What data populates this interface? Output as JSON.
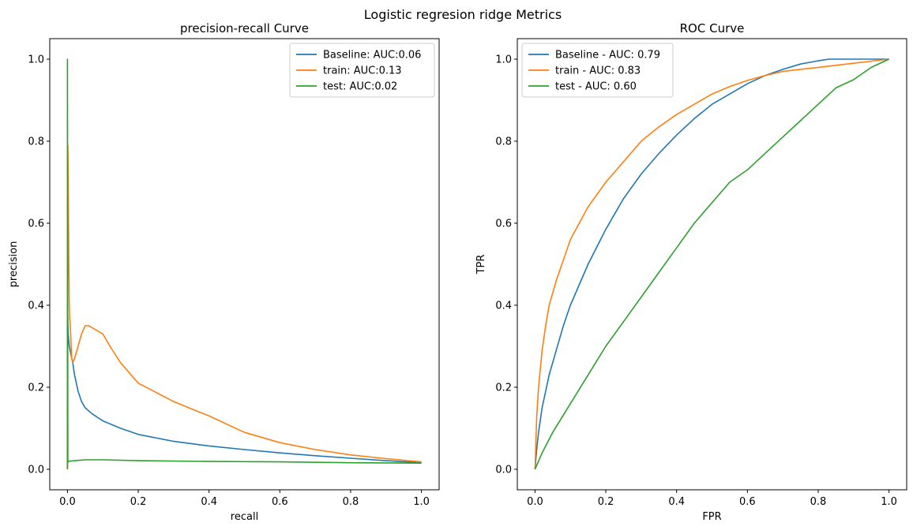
{
  "figure": {
    "title": "Logistic regresion ridge Metrics"
  },
  "colors": {
    "blue": "#1f77b4",
    "orange": "#ff7f0e",
    "green": "#2ca02c"
  },
  "chart_data": [
    {
      "type": "line",
      "title": "precision-recall Curve",
      "xlabel": "recall",
      "ylabel": "precision",
      "xlim": [
        -0.05,
        1.05
      ],
      "ylim": [
        -0.05,
        1.05
      ],
      "xticks": [
        0.0,
        0.2,
        0.4,
        0.6,
        0.8,
        1.0
      ],
      "yticks": [
        0.0,
        0.2,
        0.4,
        0.6,
        0.8,
        1.0
      ],
      "tick_labels": [
        "0.0",
        "0.2",
        "0.4",
        "0.6",
        "0.8",
        "1.0"
      ],
      "grid": false,
      "legend": "top-right",
      "series": [
        {
          "name": "Baseline: AUC:0.06",
          "color": "#1f77b4",
          "x": [
            0.0,
            0.0,
            0.002,
            0.005,
            0.01,
            0.015,
            0.02,
            0.03,
            0.04,
            0.05,
            0.07,
            0.1,
            0.15,
            0.2,
            0.3,
            0.4,
            0.5,
            0.6,
            0.7,
            0.8,
            0.9,
            1.0
          ],
          "y": [
            0.0,
            0.4,
            0.33,
            0.3,
            0.28,
            0.26,
            0.23,
            0.19,
            0.165,
            0.15,
            0.135,
            0.118,
            0.1,
            0.085,
            0.068,
            0.057,
            0.048,
            0.04,
            0.033,
            0.027,
            0.021,
            0.016
          ]
        },
        {
          "name": "train: AUC:0.13",
          "color": "#ff7f0e",
          "x": [
            0.0,
            0.001,
            0.002,
            0.003,
            0.004,
            0.005,
            0.006,
            0.008,
            0.01,
            0.012,
            0.015,
            0.02,
            0.03,
            0.04,
            0.05,
            0.06,
            0.07,
            0.08,
            0.1,
            0.12,
            0.15,
            0.2,
            0.3,
            0.4,
            0.5,
            0.6,
            0.7,
            0.8,
            0.9,
            1.0
          ],
          "y": [
            0.0,
            0.79,
            0.74,
            0.6,
            0.5,
            0.4,
            0.37,
            0.35,
            0.31,
            0.27,
            0.26,
            0.27,
            0.3,
            0.33,
            0.35,
            0.35,
            0.345,
            0.34,
            0.33,
            0.3,
            0.26,
            0.21,
            0.165,
            0.13,
            0.09,
            0.065,
            0.048,
            0.035,
            0.026,
            0.018
          ]
        },
        {
          "name": "test: AUC:0.02",
          "color": "#2ca02c",
          "x": [
            0.0,
            0.0,
            0.001,
            0.002,
            0.005,
            0.01,
            0.02,
            0.05,
            0.1,
            0.2,
            0.4,
            0.6,
            0.8,
            1.0
          ],
          "y": [
            0.0,
            1.0,
            0.02,
            0.018,
            0.02,
            0.02,
            0.021,
            0.023,
            0.023,
            0.021,
            0.019,
            0.018,
            0.016,
            0.015
          ]
        }
      ]
    },
    {
      "type": "line",
      "title": "ROC Curve",
      "xlabel": "FPR",
      "ylabel": "TPR",
      "xlim": [
        -0.05,
        1.05
      ],
      "ylim": [
        -0.05,
        1.05
      ],
      "xticks": [
        0.0,
        0.2,
        0.4,
        0.6,
        0.8,
        1.0
      ],
      "yticks": [
        0.0,
        0.2,
        0.4,
        0.6,
        0.8,
        1.0
      ],
      "tick_labels": [
        "0.0",
        "0.2",
        "0.4",
        "0.6",
        "0.8",
        "1.0"
      ],
      "grid": false,
      "legend": "top-left",
      "series": [
        {
          "name": "Baseline - AUC: 0.79",
          "color": "#1f77b4",
          "x": [
            0.0,
            0.005,
            0.01,
            0.02,
            0.04,
            0.06,
            0.08,
            0.1,
            0.15,
            0.2,
            0.25,
            0.3,
            0.35,
            0.4,
            0.45,
            0.5,
            0.55,
            0.6,
            0.65,
            0.7,
            0.75,
            0.8,
            0.83,
            0.9,
            1.0
          ],
          "y": [
            0.0,
            0.05,
            0.09,
            0.15,
            0.23,
            0.29,
            0.35,
            0.4,
            0.5,
            0.585,
            0.66,
            0.72,
            0.77,
            0.815,
            0.855,
            0.89,
            0.915,
            0.94,
            0.96,
            0.975,
            0.988,
            0.996,
            1.0,
            1.0,
            1.0
          ]
        },
        {
          "name": "train - AUC: 0.83",
          "color": "#ff7f0e",
          "x": [
            0.0,
            0.005,
            0.01,
            0.02,
            0.03,
            0.04,
            0.06,
            0.08,
            0.1,
            0.15,
            0.2,
            0.25,
            0.3,
            0.35,
            0.4,
            0.45,
            0.5,
            0.55,
            0.6,
            0.65,
            0.7,
            0.8,
            0.9,
            1.0
          ],
          "y": [
            0.0,
            0.13,
            0.2,
            0.29,
            0.35,
            0.4,
            0.46,
            0.51,
            0.56,
            0.64,
            0.7,
            0.75,
            0.8,
            0.835,
            0.865,
            0.89,
            0.915,
            0.933,
            0.948,
            0.96,
            0.97,
            0.98,
            0.99,
            1.0
          ]
        },
        {
          "name": "test - AUC: 0.60",
          "color": "#2ca02c",
          "x": [
            0.0,
            0.02,
            0.05,
            0.1,
            0.15,
            0.2,
            0.25,
            0.3,
            0.35,
            0.4,
            0.45,
            0.5,
            0.55,
            0.6,
            0.65,
            0.7,
            0.75,
            0.8,
            0.85,
            0.9,
            0.95,
            1.0
          ],
          "y": [
            0.0,
            0.04,
            0.09,
            0.16,
            0.23,
            0.3,
            0.36,
            0.42,
            0.48,
            0.54,
            0.6,
            0.65,
            0.7,
            0.73,
            0.77,
            0.81,
            0.85,
            0.89,
            0.93,
            0.95,
            0.98,
            1.0
          ]
        }
      ]
    }
  ]
}
